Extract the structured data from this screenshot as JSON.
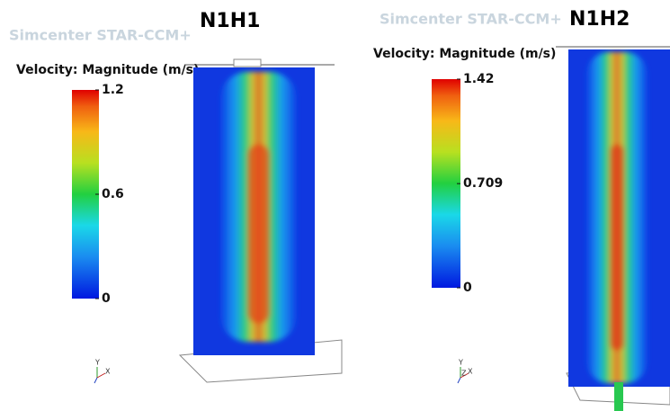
{
  "panels": [
    {
      "title": "N1H1",
      "software": "Simcenter STAR-CCM+",
      "legend_title": "Velocity: Magnitude (m/s)",
      "colorbar": {
        "min": 0,
        "max": 1.2,
        "ticks": [
          0,
          0.6,
          1.2
        ]
      },
      "triad": [
        "Y",
        "X"
      ]
    },
    {
      "title": "N1H2",
      "software": "Simcenter STAR-CCM+",
      "legend_title": "Velocity: Magnitude (m/s)",
      "colorbar": {
        "min": 0,
        "max": 1.42,
        "ticks": [
          0,
          0.709,
          1.42
        ]
      },
      "triad": [
        "Y",
        "Z",
        "X"
      ]
    }
  ]
}
